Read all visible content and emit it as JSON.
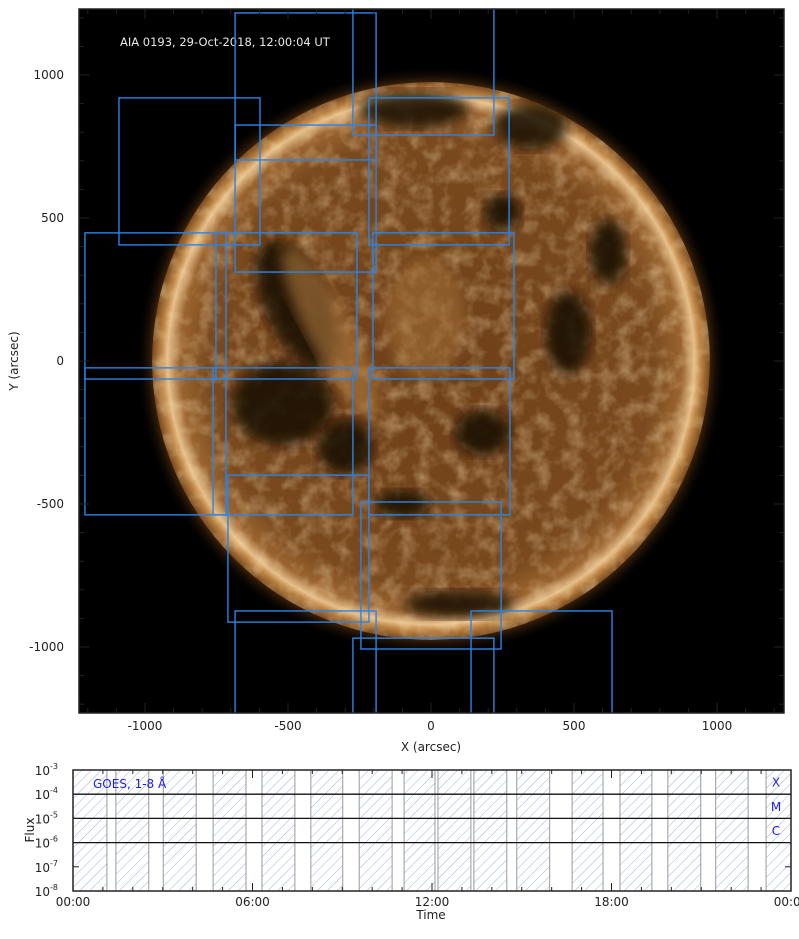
{
  "chart_data": [
    {
      "type": "image-with-boxes",
      "title": "AIA 0193, 29-Oct-2018, 12:00:04 UT",
      "xlabel": "X (arcsec)",
      "ylabel": "Y (arcsec)",
      "xlim": [
        -1231,
        1234
      ],
      "ylim": [
        -1231,
        1231
      ],
      "xticks": [
        -1000,
        -500,
        0,
        500,
        1000
      ],
      "yticks": [
        -1000,
        -500,
        0,
        500,
        1000
      ],
      "xtick_labels": [
        "-1000",
        "-500",
        "0",
        "500",
        "1000"
      ],
      "ytick_labels": [
        "-1000",
        "-500",
        "0",
        "500",
        "1000"
      ],
      "minor_tick_step": 100,
      "solar_radius_arcsec": 975,
      "colormap": [
        "#000000",
        "#3a1d08",
        "#7a4a1e",
        "#b57a3c",
        "#f0d0a0"
      ],
      "box_color": "#2a84e8",
      "boxes": [
        {
          "x": [
            -685,
            -192
          ],
          "y": [
            703,
            1217
          ]
        },
        {
          "x": [
            -685,
            -192
          ],
          "y": [
            311,
            825
          ]
        },
        {
          "x": [
            -273,
            220
          ],
          "y": [
            790,
            1304
          ]
        },
        {
          "x": [
            -1091,
            -598
          ],
          "y": [
            406,
            920
          ]
        },
        {
          "x": [
            -217,
            273
          ],
          "y": [
            406,
            920
          ]
        },
        {
          "x": [
            -1210,
            -717
          ],
          "y": [
            -63,
            448
          ]
        },
        {
          "x": [
            -752,
            -259
          ],
          "y": [
            -63,
            448
          ]
        },
        {
          "x": [
            -203,
            290
          ],
          "y": [
            -63,
            448
          ]
        },
        {
          "x": [
            -1210,
            -717
          ],
          "y": [
            -538,
            -24
          ]
        },
        {
          "x": [
            -762,
            -273
          ],
          "y": [
            -538,
            -24
          ]
        },
        {
          "x": [
            -217,
            276
          ],
          "y": [
            -538,
            -24
          ]
        },
        {
          "x": [
            -710,
            -217
          ],
          "y": [
            -913,
            -399
          ]
        },
        {
          "x": [
            -245,
            245
          ],
          "y": [
            -1007,
            -493
          ]
        },
        {
          "x": [
            -685,
            -192
          ],
          "y": [
            -1388,
            -874
          ]
        },
        {
          "x": [
            -273,
            220
          ],
          "y": [
            -1483,
            -969
          ]
        },
        {
          "x": [
            140,
            633
          ],
          "y": [
            -1388,
            -874
          ]
        }
      ]
    },
    {
      "type": "timeline",
      "legend": "GOES, 1-8 Å",
      "legend_color": "#1a1aff",
      "xlabel": "Time",
      "ylabel": "Flux",
      "yscale": "log",
      "ylim": [
        1e-08,
        0.001
      ],
      "xlim": [
        "00:00",
        "24:00"
      ],
      "xtick_labels": [
        "00:00",
        "06:00",
        "12:00",
        "18:00",
        "00:00"
      ],
      "ytick_labels": [
        {
          "base": "10",
          "exp": "-3",
          "value": 0.001
        },
        {
          "base": "10",
          "exp": "-4",
          "value": 0.0001
        },
        {
          "base": "10",
          "exp": "-5",
          "value": 1e-05
        },
        {
          "base": "10",
          "exp": "-6",
          "value": 1e-06
        },
        {
          "base": "10",
          "exp": "-7",
          "value": 1e-07
        },
        {
          "base": "10",
          "exp": "-8",
          "value": 1e-08
        }
      ],
      "flare_class_lines": [
        0.0001,
        1e-05,
        1e-06
      ],
      "flare_classes": [
        {
          "label": "X",
          "value": 0.0003
        },
        {
          "label": "M",
          "value": 3e-05
        },
        {
          "label": "C",
          "value": 3e-06
        }
      ],
      "hatch_color": "#9fb4dc",
      "intervals": [
        {
          "start": "00:00",
          "end": "01:08"
        },
        {
          "start": "01:26",
          "end": "02:32"
        },
        {
          "start": "03:01",
          "end": "04:07"
        },
        {
          "start": "04:41",
          "end": "05:47"
        },
        {
          "start": "06:19",
          "end": "07:25"
        },
        {
          "start": "07:57",
          "end": "09:01"
        },
        {
          "start": "09:34",
          "end": "10:40"
        },
        {
          "start": "11:04",
          "end": "12:06"
        },
        {
          "start": "12:12",
          "end": "13:18"
        },
        {
          "start": "13:24",
          "end": "14:30"
        },
        {
          "start": "14:50",
          "end": "15:56"
        },
        {
          "start": "16:41",
          "end": "17:43"
        },
        {
          "start": "18:17",
          "end": "19:21"
        },
        {
          "start": "19:53",
          "end": "20:59"
        },
        {
          "start": "21:29",
          "end": "22:34"
        },
        {
          "start": "23:10",
          "end": "24:00"
        }
      ]
    }
  ]
}
